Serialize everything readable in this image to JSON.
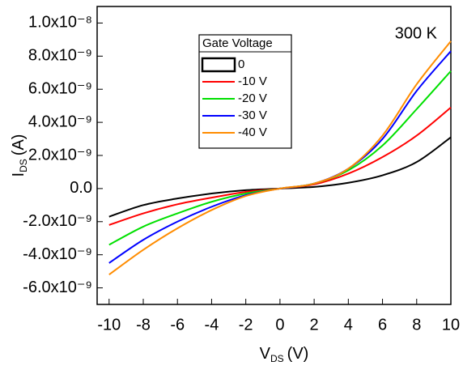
{
  "chart_data": {
    "type": "line",
    "annotation": "300 K",
    "xlabel": {
      "main": "V",
      "sub": "DS",
      "unit": "(V)"
    },
    "ylabel": {
      "main": "I",
      "sub": "DS",
      "unit": "(A)"
    },
    "legend_title": "Gate Voltage",
    "x": [
      -10,
      -8,
      -6,
      -4,
      -2,
      0,
      2,
      4,
      6,
      8,
      10
    ],
    "series": [
      {
        "name": "0",
        "color": "#000000",
        "values": [
          -1.7e-09,
          -1e-09,
          -6e-10,
          -3e-10,
          -1e-10,
          0,
          1e-10,
          3.5e-10,
          8e-10,
          1.6e-09,
          3.1e-09
        ]
      },
      {
        "name": "-10 V",
        "color": "#ff0000",
        "values": [
          -2.2e-09,
          -1.5e-09,
          -9.5e-10,
          -5.5e-10,
          -2e-10,
          0,
          2.5e-10,
          9e-10,
          1.9e-09,
          3.2e-09,
          4.9e-09
        ]
      },
      {
        "name": "-20 V",
        "color": "#00e000",
        "values": [
          -3.4e-09,
          -2.3e-09,
          -1.5e-09,
          -8e-10,
          -3e-10,
          0,
          3e-10,
          1.1e-09,
          2.6e-09,
          4.8e-09,
          7.1e-09
        ]
      },
      {
        "name": "-30 V",
        "color": "#0000ff",
        "values": [
          -4.5e-09,
          -3.1e-09,
          -2e-09,
          -1.1e-09,
          -4e-10,
          0,
          3e-10,
          1.2e-09,
          3e-09,
          5.9e-09,
          8.3e-09
        ]
      },
      {
        "name": "-40 V",
        "color": "#ff8c00",
        "values": [
          -5.2e-09,
          -3.7e-09,
          -2.4e-09,
          -1.3e-09,
          -4.5e-10,
          0,
          3e-10,
          1.2e-09,
          3.2e-09,
          6.3e-09,
          8.9e-09
        ]
      }
    ],
    "xlim": [
      -10.7,
      10
    ],
    "xticks": [
      -10,
      -8,
      -6,
      -4,
      -2,
      0,
      2,
      4,
      6,
      8,
      10
    ],
    "ylim": [
      -7e-09,
      1.1e-08
    ],
    "yticks": [
      {
        "value": -6e-09,
        "label": "-6.0x10⁻⁹"
      },
      {
        "value": -4e-09,
        "label": "-4.0x10⁻⁹"
      },
      {
        "value": -2e-09,
        "label": "-2.0x10⁻⁹"
      },
      {
        "value": 0,
        "label": "0.0"
      },
      {
        "value": 2e-09,
        "label": "2.0x10⁻⁹"
      },
      {
        "value": 4e-09,
        "label": "4.0x10⁻⁹"
      },
      {
        "value": 6e-09,
        "label": "6.0x10⁻⁹"
      },
      {
        "value": 8e-09,
        "label": "8.0x10⁻⁹"
      },
      {
        "value": 1e-08,
        "label": "1.0x10⁻⁸"
      }
    ]
  }
}
